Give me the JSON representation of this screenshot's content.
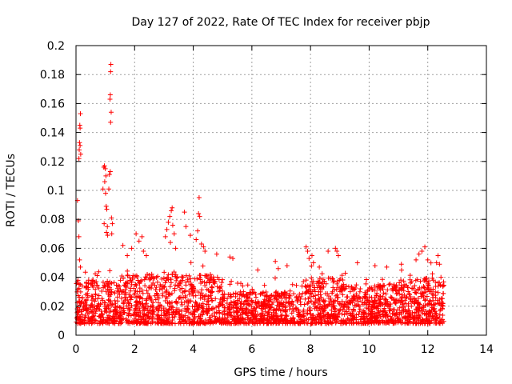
{
  "chart_data": {
    "type": "scatter",
    "title": "Day 127 of 2022, Rate Of TEC Index for receiver pbjp",
    "xlabel": "GPS time / hours",
    "ylabel": "ROTI / TECUs",
    "xlim": [
      0,
      14
    ],
    "ylim": [
      0,
      0.2
    ],
    "x_ticks": [
      0,
      2,
      4,
      6,
      8,
      10,
      12,
      14
    ],
    "y_ticks": [
      0,
      0.02,
      0.04,
      0.06,
      0.08,
      0.1,
      0.12,
      0.14,
      0.16,
      0.18,
      0.2
    ],
    "x_tick_labels": [
      "0",
      "2",
      "4",
      "6",
      "8",
      "10",
      "12",
      "14"
    ],
    "y_tick_labels": [
      "0",
      "0.02",
      "0.04",
      "0.06",
      "0.08",
      "0.1",
      "0.12",
      "0.14",
      "0.16",
      "0.18",
      "0.2"
    ],
    "grid": true,
    "marker": "plus",
    "marker_color": "#ff0000",
    "series": [
      {
        "name": "ROTI",
        "points": [
          [
            0.05,
            0.093
          ],
          [
            0.08,
            0.079
          ],
          [
            0.1,
            0.068
          ],
          [
            0.12,
            0.052
          ],
          [
            0.15,
            0.047
          ],
          [
            0.1,
            0.122
          ],
          [
            0.11,
            0.128
          ],
          [
            0.12,
            0.133
          ],
          [
            0.13,
            0.145
          ],
          [
            0.14,
            0.143
          ],
          [
            0.15,
            0.153
          ],
          [
            0.16,
            0.125
          ],
          [
            0.14,
            0.131
          ],
          [
            0.92,
            0.101
          ],
          [
            0.95,
            0.116
          ],
          [
            0.97,
            0.117
          ],
          [
            1.0,
            0.115
          ],
          [
            1.02,
            0.11
          ],
          [
            0.98,
            0.106
          ],
          [
            1.01,
            0.098
          ],
          [
            1.03,
            0.089
          ],
          [
            1.05,
            0.087
          ],
          [
            0.96,
            0.077
          ],
          [
            1.04,
            0.071
          ],
          [
            1.07,
            0.075
          ],
          [
            1.08,
            0.069
          ],
          [
            1.12,
            0.101
          ],
          [
            1.14,
            0.111
          ],
          [
            1.17,
            0.113
          ],
          [
            1.19,
            0.187
          ],
          [
            1.18,
            0.182
          ],
          [
            1.17,
            0.166
          ],
          [
            1.16,
            0.163
          ],
          [
            1.2,
            0.154
          ],
          [
            1.18,
            0.147
          ],
          [
            1.21,
            0.081
          ],
          [
            1.24,
            0.077
          ],
          [
            1.22,
            0.07
          ],
          [
            1.6,
            0.062
          ],
          [
            1.75,
            0.055
          ],
          [
            1.9,
            0.06
          ],
          [
            2.05,
            0.07
          ],
          [
            2.15,
            0.065
          ],
          [
            2.25,
            0.068
          ],
          [
            2.3,
            0.058
          ],
          [
            2.4,
            0.055
          ],
          [
            3.05,
            0.068
          ],
          [
            3.1,
            0.073
          ],
          [
            3.15,
            0.078
          ],
          [
            3.2,
            0.082
          ],
          [
            3.25,
            0.086
          ],
          [
            3.28,
            0.088
          ],
          [
            3.3,
            0.076
          ],
          [
            3.35,
            0.07
          ],
          [
            3.22,
            0.064
          ],
          [
            3.4,
            0.06
          ],
          [
            3.7,
            0.085
          ],
          [
            3.75,
            0.075
          ],
          [
            3.9,
            0.069
          ],
          [
            4.1,
            0.066
          ],
          [
            4.15,
            0.072
          ],
          [
            4.18,
            0.084
          ],
          [
            4.2,
            0.095
          ],
          [
            4.22,
            0.082
          ],
          [
            4.28,
            0.063
          ],
          [
            4.35,
            0.061
          ],
          [
            4.4,
            0.058
          ],
          [
            4.8,
            0.056
          ],
          [
            5.25,
            0.054
          ],
          [
            5.35,
            0.053
          ],
          [
            6.2,
            0.045
          ],
          [
            6.8,
            0.051
          ],
          [
            6.9,
            0.046
          ],
          [
            7.2,
            0.048
          ],
          [
            7.85,
            0.061
          ],
          [
            7.9,
            0.058
          ],
          [
            7.95,
            0.053
          ],
          [
            8.05,
            0.055
          ],
          [
            8.1,
            0.05
          ],
          [
            8.3,
            0.047
          ],
          [
            8.6,
            0.058
          ],
          [
            8.85,
            0.06
          ],
          [
            8.9,
            0.058
          ],
          [
            8.95,
            0.055
          ],
          [
            9.6,
            0.05
          ],
          [
            10.2,
            0.048
          ],
          [
            10.6,
            0.047
          ],
          [
            11.1,
            0.049
          ],
          [
            11.6,
            0.052
          ],
          [
            11.7,
            0.056
          ],
          [
            11.8,
            0.058
          ],
          [
            11.9,
            0.061
          ],
          [
            12.0,
            0.052
          ],
          [
            12.3,
            0.05
          ],
          [
            12.35,
            0.055
          ],
          [
            12.4,
            0.049
          ],
          [
            12.45,
            0.04
          ]
        ],
        "dense_band": {
          "x_range": [
            0,
            12.55
          ],
          "y_base_range": [
            0.008,
            0.04
          ],
          "description_note": "ROTI band of dense samples"
        }
      }
    ]
  }
}
